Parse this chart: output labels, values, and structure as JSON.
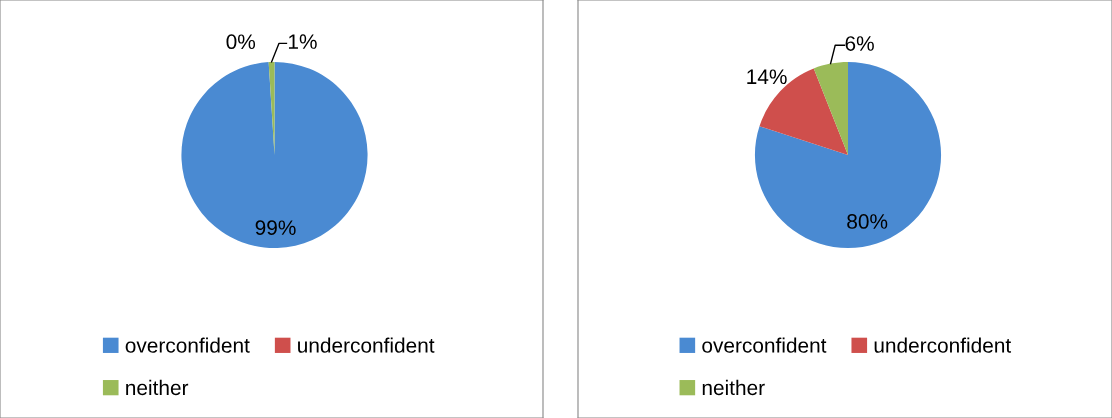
{
  "chart_data": [
    {
      "type": "pie",
      "categories": [
        "overconfident",
        "underconfident",
        "neither"
      ],
      "values": [
        99,
        0,
        1
      ],
      "colors": [
        "#4a8ad2",
        "#cf4f4c",
        "#9bbb59"
      ],
      "value_labels": [
        "99%",
        "0%",
        "1%"
      ],
      "legend": "bottom"
    },
    {
      "type": "pie",
      "categories": [
        "overconfident",
        "underconfident",
        "neither"
      ],
      "values": [
        80,
        14,
        6
      ],
      "colors": [
        "#4a8ad2",
        "#cf4f4c",
        "#9bbb59"
      ],
      "value_labels": [
        "80%",
        "14%",
        "6%"
      ],
      "legend": "bottom"
    }
  ]
}
